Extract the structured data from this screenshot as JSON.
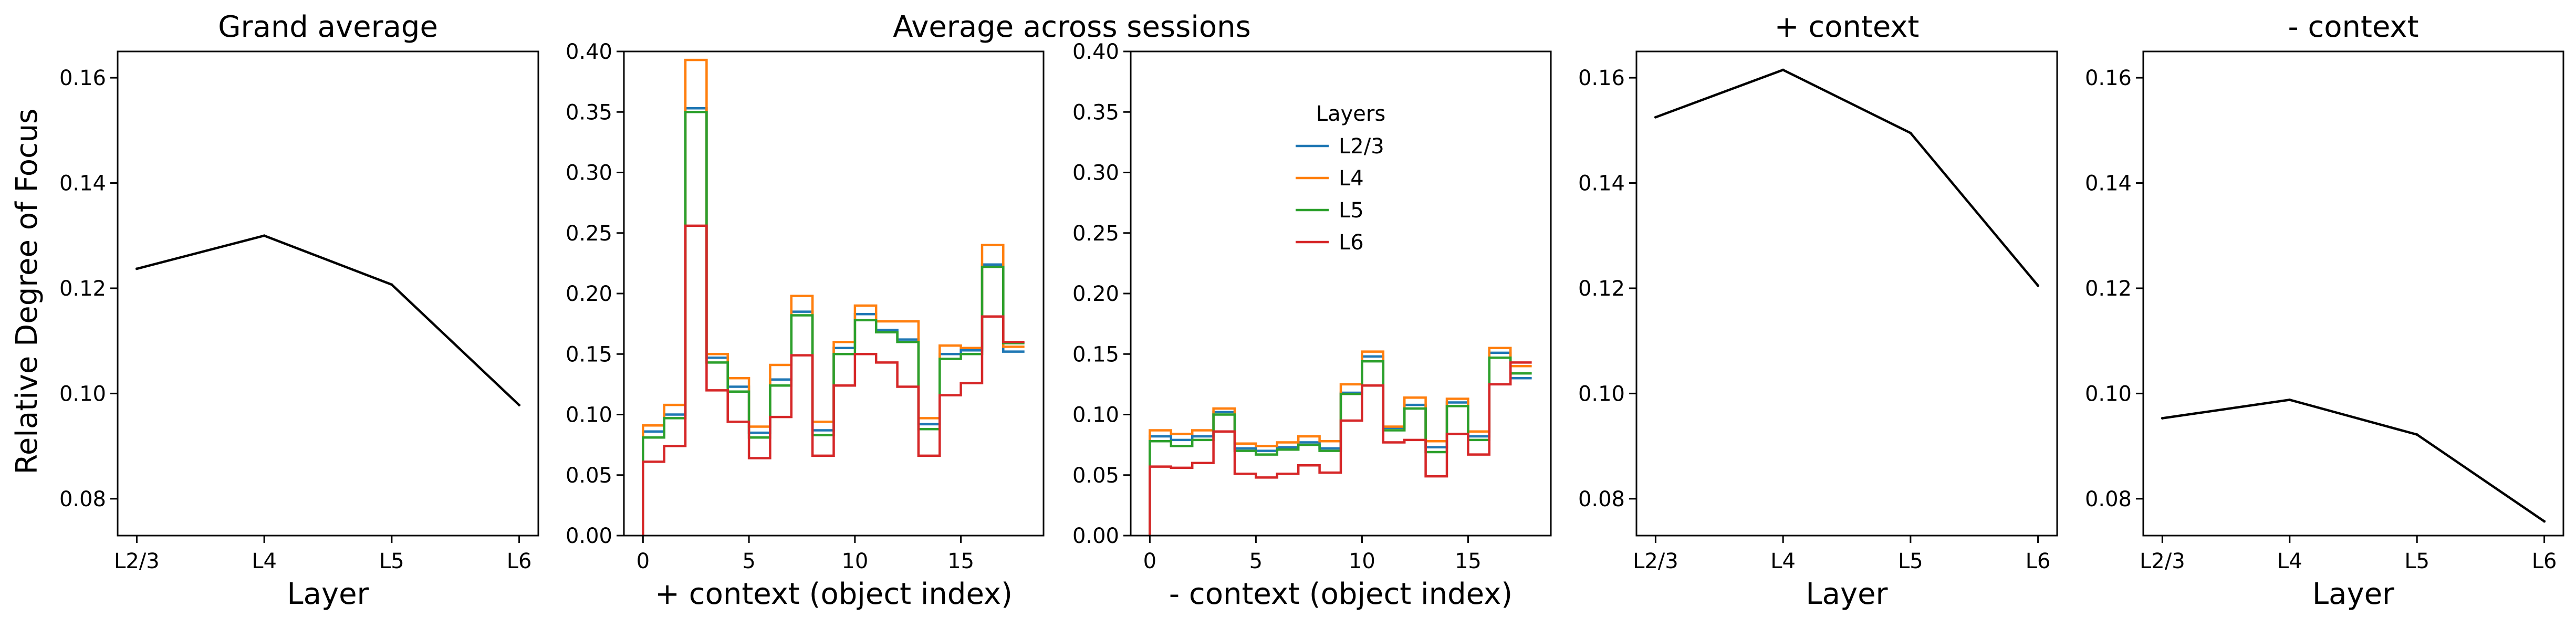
{
  "figure": {
    "ylabel": "Relative Degree of Focus",
    "suptitle": "Average across sessions"
  },
  "chart_data": [
    {
      "type": "line",
      "title": "Grand average",
      "xlabel": "Layer",
      "ylabel": "Relative Degree of Focus",
      "categories": [
        "L2/3",
        "L4",
        "L5",
        "L6"
      ],
      "series": [
        {
          "values": [
            0.1237,
            0.13,
            0.1207,
            0.0978
          ],
          "color": "#000000"
        }
      ],
      "ylim": [
        0.073,
        0.165
      ],
      "yticks": [
        0.08,
        0.1,
        0.12,
        0.14,
        0.16
      ],
      "grid": false
    },
    {
      "type": "line",
      "subtype": "step-histogram",
      "title": "",
      "xlabel": "+ context (object index)",
      "x": [
        0,
        1,
        2,
        3,
        4,
        5,
        6,
        7,
        8,
        9,
        10,
        11,
        12,
        13,
        14,
        15,
        16,
        17
      ],
      "xlim": [
        -0.9,
        18.9
      ],
      "xticks": [
        0,
        5,
        10,
        15
      ],
      "ylim": [
        0,
        0.4
      ],
      "yticks": [
        0.0,
        0.05,
        0.1,
        0.15,
        0.2,
        0.25,
        0.3,
        0.35,
        0.4
      ],
      "series": [
        {
          "name": "L2/3",
          "color": "#1f77b4",
          "values": [
            0.086,
            0.1,
            0.353,
            0.147,
            0.123,
            0.085,
            0.129,
            0.185,
            0.087,
            0.155,
            0.183,
            0.17,
            0.162,
            0.092,
            0.15,
            0.153,
            0.224,
            0.152
          ]
        },
        {
          "name": "L4",
          "color": "#ff7f0e",
          "values": [
            0.091,
            0.108,
            0.393,
            0.15,
            0.13,
            0.09,
            0.141,
            0.198,
            0.094,
            0.16,
            0.19,
            0.177,
            0.177,
            0.097,
            0.157,
            0.155,
            0.24,
            0.156
          ]
        },
        {
          "name": "L5",
          "color": "#2ca02c",
          "values": [
            0.081,
            0.097,
            0.35,
            0.143,
            0.119,
            0.081,
            0.124,
            0.182,
            0.083,
            0.15,
            0.178,
            0.168,
            0.16,
            0.088,
            0.146,
            0.15,
            0.222,
            0.159
          ]
        },
        {
          "name": "L6",
          "color": "#d62728",
          "values": [
            0.061,
            0.074,
            0.256,
            0.12,
            0.094,
            0.064,
            0.098,
            0.149,
            0.066,
            0.124,
            0.15,
            0.143,
            0.123,
            0.066,
            0.116,
            0.126,
            0.181,
            0.16
          ]
        }
      ],
      "grid": false
    },
    {
      "type": "line",
      "subtype": "step-histogram",
      "title": "",
      "xlabel": "- context (object index)",
      "x": [
        0,
        1,
        2,
        3,
        4,
        5,
        6,
        7,
        8,
        9,
        10,
        11,
        12,
        13,
        14,
        15,
        16,
        17
      ],
      "xlim": [
        -0.9,
        18.9
      ],
      "xticks": [
        0,
        5,
        10,
        15
      ],
      "ylim": [
        0,
        0.4
      ],
      "yticks": [
        0.0,
        0.05,
        0.1,
        0.15,
        0.2,
        0.25,
        0.3,
        0.35,
        0.4
      ],
      "series": [
        {
          "name": "L2/3",
          "color": "#1f77b4",
          "values": [
            0.082,
            0.079,
            0.082,
            0.102,
            0.072,
            0.07,
            0.073,
            0.077,
            0.072,
            0.118,
            0.148,
            0.089,
            0.108,
            0.073,
            0.11,
            0.082,
            0.151,
            0.13
          ]
        },
        {
          "name": "L4",
          "color": "#ff7f0e",
          "values": [
            0.087,
            0.084,
            0.087,
            0.105,
            0.076,
            0.074,
            0.077,
            0.082,
            0.078,
            0.125,
            0.152,
            0.09,
            0.114,
            0.078,
            0.113,
            0.086,
            0.155,
            0.14
          ]
        },
        {
          "name": "L5",
          "color": "#2ca02c",
          "values": [
            0.078,
            0.074,
            0.079,
            0.1,
            0.07,
            0.067,
            0.071,
            0.075,
            0.07,
            0.117,
            0.144,
            0.087,
            0.105,
            0.069,
            0.107,
            0.079,
            0.147,
            0.134
          ]
        },
        {
          "name": "L6",
          "color": "#d62728",
          "values": [
            0.057,
            0.056,
            0.06,
            0.086,
            0.051,
            0.048,
            0.051,
            0.058,
            0.052,
            0.095,
            0.124,
            0.077,
            0.079,
            0.049,
            0.084,
            0.067,
            0.125,
            0.143
          ]
        }
      ],
      "legend": {
        "title": "Layers",
        "placement": "upper center"
      },
      "grid": false
    },
    {
      "type": "line",
      "title": "+ context",
      "xlabel": "Layer",
      "categories": [
        "L2/3",
        "L4",
        "L5",
        "L6"
      ],
      "series": [
        {
          "values": [
            0.1525,
            0.1615,
            0.1495,
            0.1205
          ],
          "color": "#000000"
        }
      ],
      "ylim": [
        0.073,
        0.165
      ],
      "yticks": [
        0.08,
        0.1,
        0.12,
        0.14,
        0.16
      ],
      "grid": false
    },
    {
      "type": "line",
      "title": "- context",
      "xlabel": "Layer",
      "categories": [
        "L2/3",
        "L4",
        "L5",
        "L6"
      ],
      "series": [
        {
          "values": [
            0.0953,
            0.0988,
            0.0922,
            0.0757
          ],
          "color": "#000000"
        }
      ],
      "ylim": [
        0.073,
        0.165
      ],
      "yticks": [
        0.08,
        0.1,
        0.12,
        0.14,
        0.16
      ],
      "grid": false
    }
  ]
}
